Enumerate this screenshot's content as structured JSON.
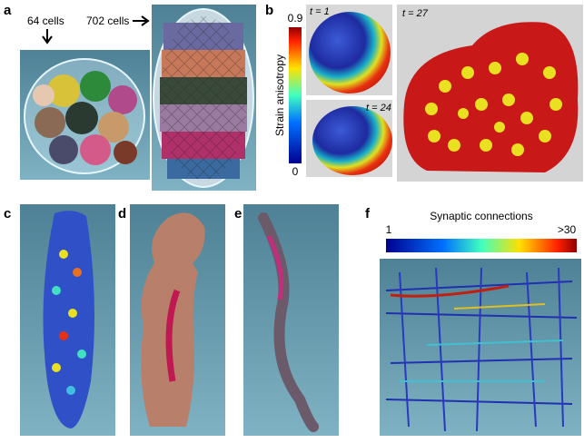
{
  "panels": {
    "a": {
      "label": "a",
      "annotations": [
        "64 cells",
        "702 cells"
      ]
    },
    "b": {
      "label": "b",
      "colorbar_title": "Strain anisotropy",
      "colorbar_max": "0.9",
      "colorbar_min": "0",
      "time_labels": [
        "t = 1",
        "t = 24",
        "t = 27"
      ]
    },
    "c": {
      "label": "c"
    },
    "d": {
      "label": "d"
    },
    "e": {
      "label": "e"
    },
    "f": {
      "label": "f",
      "colorbar_title": "Synaptic connections",
      "colorbar_min": "1",
      "colorbar_max": ">30"
    }
  }
}
